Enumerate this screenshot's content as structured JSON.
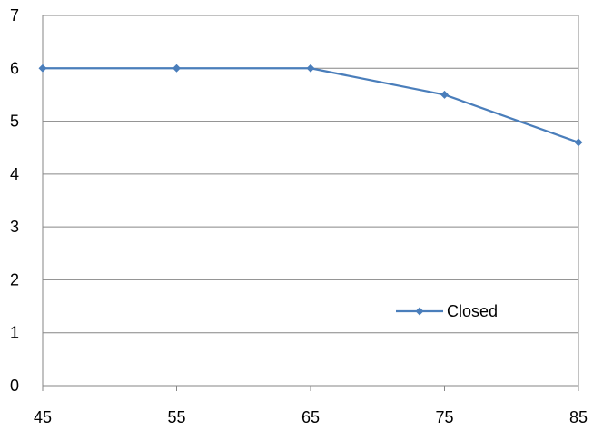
{
  "chart_data": {
    "type": "line",
    "title": "",
    "xlabel": "",
    "ylabel": "",
    "x": [
      45,
      55,
      65,
      75,
      85
    ],
    "xlim": [
      45,
      85
    ],
    "ylim": [
      0,
      7
    ],
    "x_ticks": [
      "45",
      "55",
      "65",
      "75",
      "85"
    ],
    "y_ticks": [
      "0",
      "1",
      "2",
      "3",
      "4",
      "5",
      "6",
      "7"
    ],
    "grid": true,
    "legend_position": "bottom-right",
    "series": [
      {
        "name": "Closed",
        "values": [
          6,
          6,
          6,
          5.5,
          4.6
        ],
        "color": "#4a7ebb"
      }
    ]
  }
}
